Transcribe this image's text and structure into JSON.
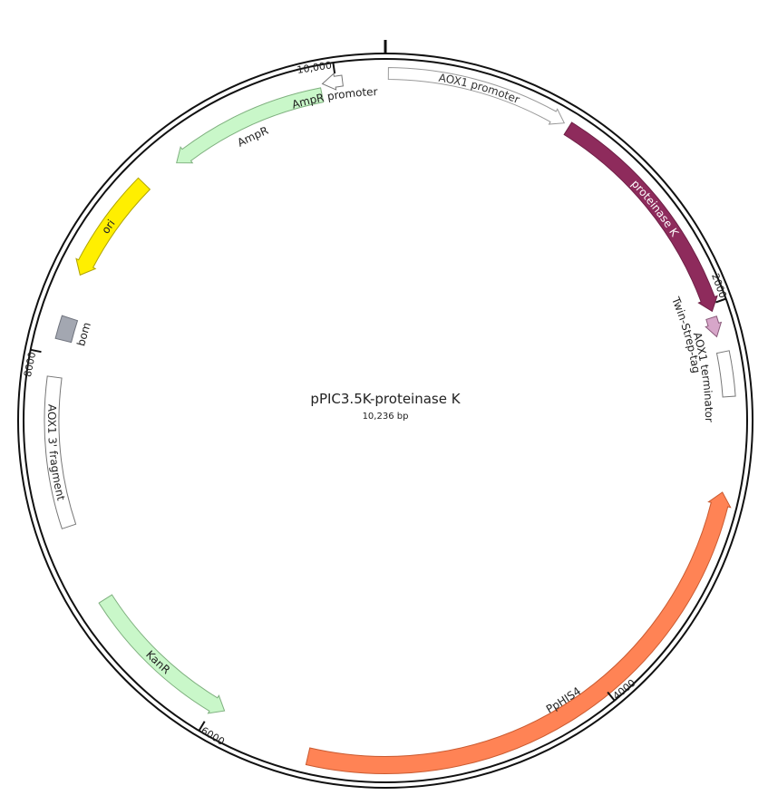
{
  "plasmid": {
    "name": "pPIC3.5K-proteinase K",
    "length": "10,236 bp",
    "ticks": [
      "2000",
      "4000",
      "6000",
      "8000",
      "10,000"
    ],
    "features": [
      {
        "label": "AOX1 promoter"
      },
      {
        "label": "proteinase K"
      },
      {
        "label": "Twin-Strep-tag"
      },
      {
        "label": "AOX1 terminator"
      },
      {
        "label": "PpHIS4"
      },
      {
        "label": "KanR"
      },
      {
        "label": "AOX1 3' fragment"
      },
      {
        "label": "bom"
      },
      {
        "label": "ori"
      },
      {
        "label": "AmpR"
      },
      {
        "label": "AmpR promoter"
      }
    ]
  }
}
